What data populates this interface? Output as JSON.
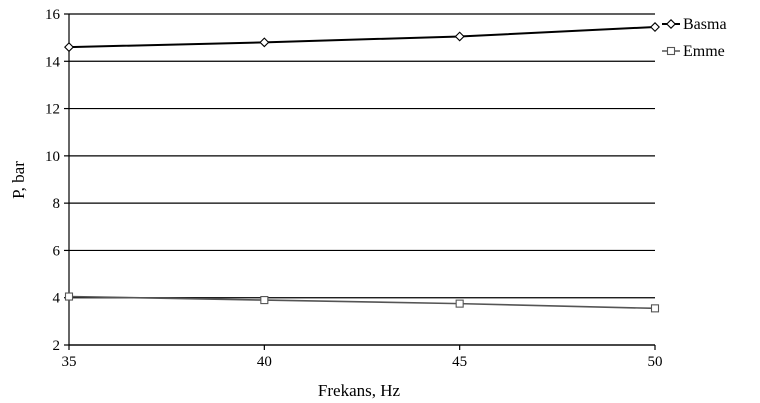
{
  "chart_data": {
    "type": "line",
    "title": "",
    "xlabel": "Frekans, Hz",
    "ylabel": "P, bar",
    "x": [
      35,
      40,
      45,
      50
    ],
    "xlim": [
      35,
      50
    ],
    "ylim": [
      2,
      16
    ],
    "xticks": [
      35,
      40,
      45,
      50
    ],
    "yticks": [
      2,
      4,
      6,
      8,
      10,
      12,
      14,
      16
    ],
    "grid": "horizontal",
    "legend_position": "top-right",
    "series": [
      {
        "name": "Basma",
        "marker": "diamond",
        "color": "#000000",
        "values": [
          14.6,
          14.8,
          15.05,
          15.45
        ]
      },
      {
        "name": "Emme",
        "marker": "square",
        "color": "#555555",
        "values": [
          4.05,
          3.9,
          3.75,
          3.55
        ]
      }
    ]
  }
}
